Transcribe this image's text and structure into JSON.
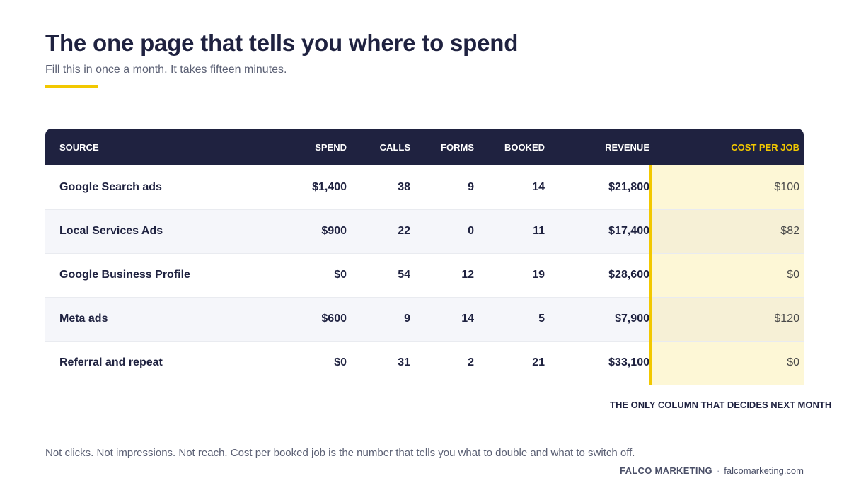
{
  "header": {
    "title": "The one page that tells you where to spend",
    "subtitle": "Fill this in once a month. It takes fifteen minutes."
  },
  "table": {
    "columns": [
      "SOURCE",
      "SPEND",
      "CALLS",
      "FORMS",
      "BOOKED",
      "REVENUE",
      "COST PER JOB"
    ],
    "rows": [
      {
        "source": "Google Search ads",
        "spend": "$1,400",
        "calls": "38",
        "forms": "9",
        "booked": "14",
        "revenue": "$21,800",
        "cost_per_job": "$100"
      },
      {
        "source": "Local Services Ads",
        "spend": "$900",
        "calls": "22",
        "forms": "0",
        "booked": "11",
        "revenue": "$17,400",
        "cost_per_job": "$82"
      },
      {
        "source": "Google Business Profile",
        "spend": "$0",
        "calls": "54",
        "forms": "12",
        "booked": "19",
        "revenue": "$28,600",
        "cost_per_job": "$0"
      },
      {
        "source": "Meta ads",
        "spend": "$600",
        "calls": "9",
        "forms": "14",
        "booked": "5",
        "revenue": "$7,900",
        "cost_per_job": "$120"
      },
      {
        "source": "Referral and repeat",
        "spend": "$0",
        "calls": "31",
        "forms": "2",
        "booked": "21",
        "revenue": "$33,100",
        "cost_per_job": "$0"
      }
    ],
    "highlight_note": "THE ONLY COLUMN THAT DECIDES NEXT MONTH"
  },
  "footnote": "Not clicks. Not impressions. Not reach. Cost per booked job is the number that tells you what to double and what to switch off.",
  "footer": {
    "brand": "FALCO MARKETING",
    "separator": "·",
    "url": "falcomarketing.com"
  },
  "colors": {
    "navy": "#1f2240",
    "accent_yellow": "#f2c800",
    "highlight_fill": "#fdf7d6"
  }
}
